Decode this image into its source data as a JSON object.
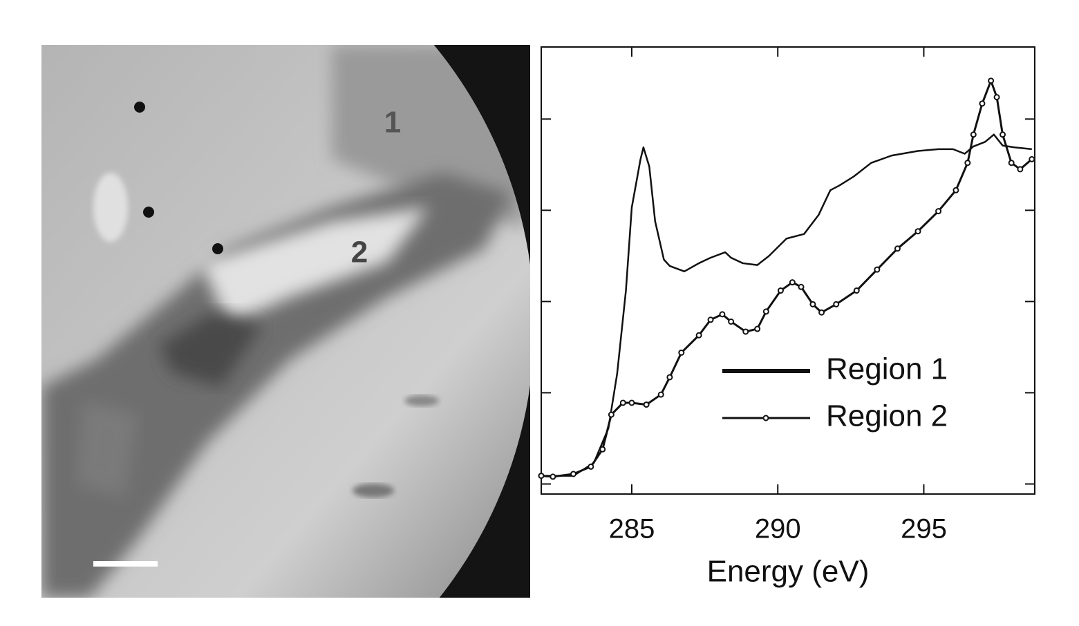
{
  "image": {
    "labels": [
      "1",
      "2"
    ]
  },
  "chart_data": {
    "type": "line",
    "xlabel": "Energy (eV)",
    "xlim": [
      281.9,
      298.8
    ],
    "xticks": [
      285,
      290,
      295
    ],
    "ylim": [
      -0.11,
      4.79
    ],
    "yticks": [
      0,
      1,
      2,
      3,
      4
    ],
    "legend": "lower-right",
    "series": [
      {
        "name": "Region 1",
        "color": "#111111",
        "marker": false,
        "x": [
          281.9,
          283.0,
          283.7,
          284.2,
          284.5,
          284.8,
          285.0,
          285.3,
          285.4,
          285.6,
          285.8,
          286.1,
          286.3,
          286.8,
          287.3,
          287.7,
          288.2,
          288.4,
          288.8,
          289.3,
          289.7,
          290.3,
          290.9,
          291.4,
          291.8,
          292.1,
          292.6,
          293.2,
          293.9,
          294.8,
          295.5,
          296.0,
          296.4,
          296.7,
          297.1,
          297.4,
          297.7,
          298.1,
          298.7
        ],
        "values": [
          0.09,
          0.09,
          0.23,
          0.61,
          1.21,
          2.12,
          3.03,
          3.56,
          3.69,
          3.48,
          2.88,
          2.46,
          2.39,
          2.33,
          2.42,
          2.48,
          2.54,
          2.48,
          2.42,
          2.4,
          2.5,
          2.69,
          2.74,
          2.95,
          3.22,
          3.27,
          3.37,
          3.52,
          3.6,
          3.65,
          3.67,
          3.67,
          3.62,
          3.7,
          3.75,
          3.83,
          3.71,
          3.69,
          3.67
        ]
      },
      {
        "name": "Region 2",
        "color": "#111111",
        "marker": true,
        "x": [
          281.9,
          282.3,
          283.0,
          283.6,
          284.0,
          284.3,
          284.7,
          285.0,
          285.5,
          286.0,
          286.3,
          286.7,
          287.3,
          287.7,
          288.1,
          288.4,
          288.9,
          289.3,
          289.6,
          290.1,
          290.5,
          290.8,
          291.2,
          291.5,
          292.0,
          292.7,
          293.4,
          294.1,
          294.8,
          295.5,
          296.1,
          296.5,
          296.7,
          297.0,
          297.3,
          297.5,
          297.7,
          298.0,
          298.3,
          298.7
        ],
        "values": [
          0.09,
          0.08,
          0.11,
          0.19,
          0.38,
          0.76,
          0.89,
          0.89,
          0.87,
          0.98,
          1.17,
          1.44,
          1.63,
          1.8,
          1.86,
          1.78,
          1.67,
          1.7,
          1.89,
          2.12,
          2.21,
          2.16,
          1.97,
          1.88,
          1.97,
          2.12,
          2.35,
          2.58,
          2.77,
          2.99,
          3.22,
          3.52,
          3.83,
          4.17,
          4.42,
          4.24,
          3.83,
          3.52,
          3.45,
          3.56
        ]
      }
    ]
  }
}
